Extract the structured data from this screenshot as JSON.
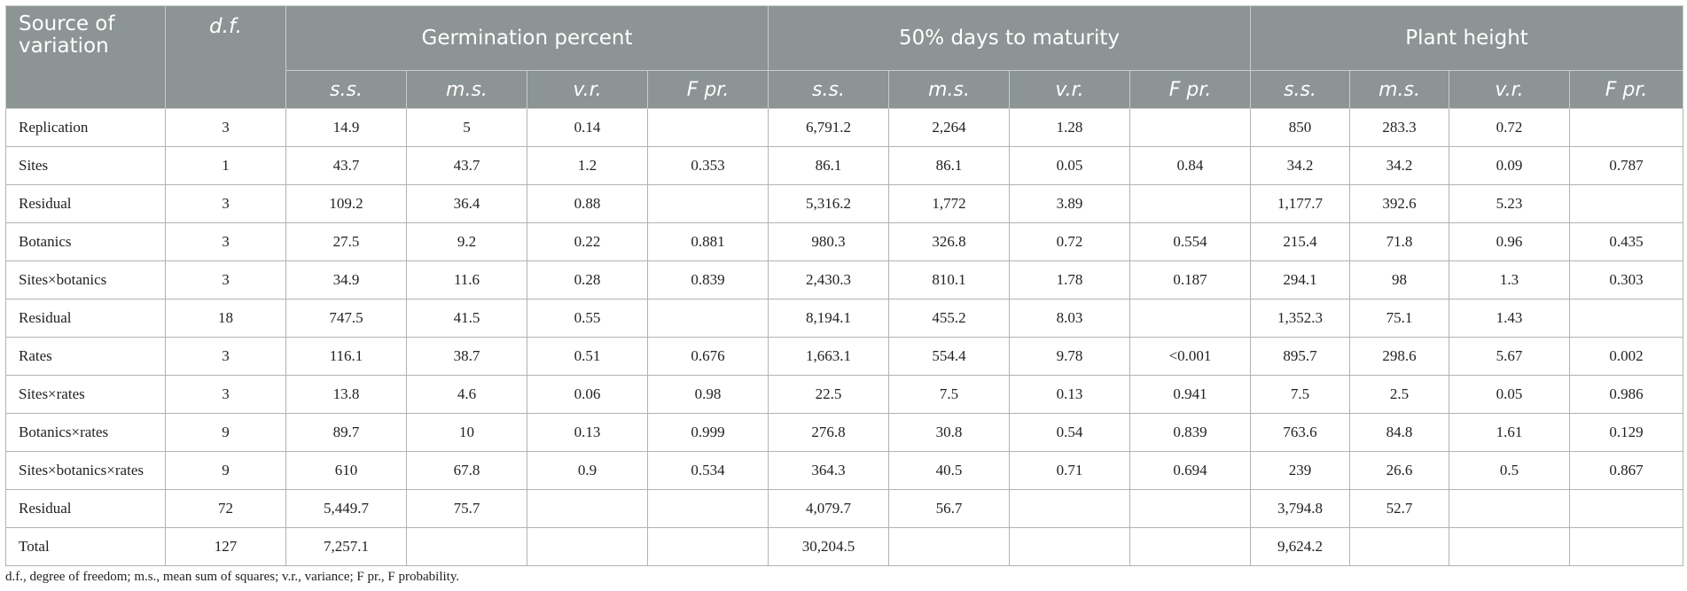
{
  "header": {
    "source": "Source of variation",
    "df": "d.f.",
    "groups": [
      "Germination percent",
      "50% days to maturity",
      "Plant height"
    ],
    "subheads": [
      "s.s.",
      "m.s.",
      "v.r.",
      "F pr."
    ]
  },
  "rows": [
    {
      "source": "Replication",
      "df": "3",
      "cells": [
        "14.9",
        "5",
        "0.14",
        "",
        "6,791.2",
        "2,264",
        "1.28",
        "",
        "850",
        "283.3",
        "0.72",
        ""
      ]
    },
    {
      "source": "Sites",
      "df": "1",
      "cells": [
        "43.7",
        "43.7",
        "1.2",
        "0.353",
        "86.1",
        "86.1",
        "0.05",
        "0.84",
        "34.2",
        "34.2",
        "0.09",
        "0.787"
      ]
    },
    {
      "source": "Residual",
      "df": "3",
      "cells": [
        "109.2",
        "36.4",
        "0.88",
        "",
        "5,316.2",
        "1,772",
        "3.89",
        "",
        "1,177.7",
        "392.6",
        "5.23",
        ""
      ]
    },
    {
      "source": "Botanics",
      "df": "3",
      "cells": [
        "27.5",
        "9.2",
        "0.22",
        "0.881",
        "980.3",
        "326.8",
        "0.72",
        "0.554",
        "215.4",
        "71.8",
        "0.96",
        "0.435"
      ]
    },
    {
      "source": "Sites×botanics",
      "df": "3",
      "cells": [
        "34.9",
        "11.6",
        "0.28",
        "0.839",
        "2,430.3",
        "810.1",
        "1.78",
        "0.187",
        "294.1",
        "98",
        "1.3",
        "0.303"
      ]
    },
    {
      "source": "Residual",
      "df": "18",
      "cells": [
        "747.5",
        "41.5",
        "0.55",
        "",
        "8,194.1",
        "455.2",
        "8.03",
        "",
        "1,352.3",
        "75.1",
        "1.43",
        ""
      ]
    },
    {
      "source": "Rates",
      "df": "3",
      "cells": [
        "116.1",
        "38.7",
        "0.51",
        "0.676",
        "1,663.1",
        "554.4",
        "9.78",
        "<0.001",
        "895.7",
        "298.6",
        "5.67",
        "0.002"
      ]
    },
    {
      "source": "Sites×rates",
      "df": "3",
      "cells": [
        "13.8",
        "4.6",
        "0.06",
        "0.98",
        "22.5",
        "7.5",
        "0.13",
        "0.941",
        "7.5",
        "2.5",
        "0.05",
        "0.986"
      ]
    },
    {
      "source": "Botanics×rates",
      "df": "9",
      "cells": [
        "89.7",
        "10",
        "0.13",
        "0.999",
        "276.8",
        "30.8",
        "0.54",
        "0.839",
        "763.6",
        "84.8",
        "1.61",
        "0.129"
      ]
    },
    {
      "source": "Sites×botanics×rates",
      "df": "9",
      "cells": [
        "610",
        "67.8",
        "0.9",
        "0.534",
        "364.3",
        "40.5",
        "0.71",
        "0.694",
        "239",
        "26.6",
        "0.5",
        "0.867"
      ]
    },
    {
      "source": "Residual",
      "df": "72",
      "cells": [
        "5,449.7",
        "75.7",
        "",
        "",
        "4,079.7",
        "56.7",
        "",
        "",
        "3,794.8",
        "52.7",
        "",
        ""
      ]
    },
    {
      "source": "Total",
      "df": "127",
      "cells": [
        "7,257.1",
        "",
        "",
        "",
        "30,204.5",
        "",
        "",
        "",
        "9,624.2",
        "",
        "",
        ""
      ]
    }
  ],
  "footnote": "d.f., degree of freedom; m.s., mean sum of squares; v.r., variance; F pr., F probability."
}
